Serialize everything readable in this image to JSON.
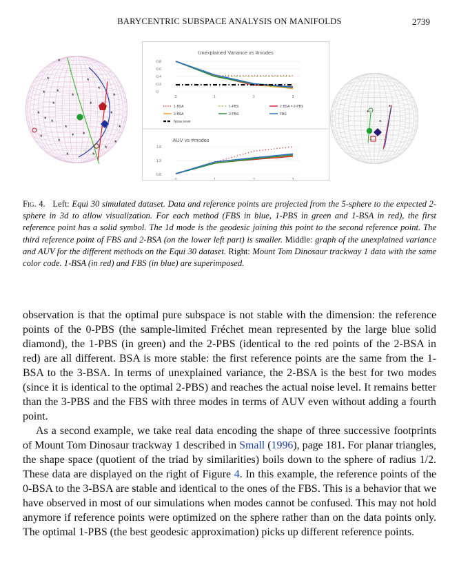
{
  "header": {
    "running_title": "BARYCENTRIC SUBSPACE ANALYSIS ON MANIFOLDS",
    "page_number": "2739"
  },
  "figure": {
    "left_panel": "Equi 30 simulated dataset projected on sphere",
    "right_panel": "Mount Tom Dinosaur trackway 1 data on sphere"
  },
  "chart_data": [
    {
      "type": "line",
      "title": "Unexplained Variance vs #modes",
      "x": [
        0,
        1,
        2,
        3
      ],
      "ylim": [
        0,
        0.8
      ],
      "yticks": [
        "0.8",
        "0.6",
        "0.4",
        "0.2",
        "0"
      ],
      "xticks": [
        "0",
        "1",
        "2",
        "3"
      ],
      "legend": [
        "1-BSA",
        "1-PBS",
        "2-BSA = 2-PBS",
        "3-BSA",
        "3-PBS",
        "FBS",
        "Noise level"
      ],
      "legend_placement": "bottom",
      "series": [
        {
          "name": "1-BSA",
          "color": "#e0282e",
          "style": "dotted",
          "values": [
            0.82,
            0.42,
            0.42,
            0.42
          ]
        },
        {
          "name": "1-PBS",
          "color": "#9ccf6a",
          "style": "dashed",
          "values": [
            0.82,
            0.4,
            0.4,
            0.4
          ]
        },
        {
          "name": "2-BSA = 2-PBS",
          "color": "#e0282e",
          "style": "solid",
          "values": [
            0.82,
            0.42,
            0.17,
            0.13
          ]
        },
        {
          "name": "3-BSA",
          "color": "#f0a030",
          "style": "solid",
          "values": [
            0.82,
            0.42,
            0.19,
            0.08
          ]
        },
        {
          "name": "3-PBS",
          "color": "#2e8b3a",
          "style": "solid",
          "values": [
            0.82,
            0.4,
            0.2,
            0.11
          ]
        },
        {
          "name": "FBS",
          "color": "#2a6fc4",
          "style": "solid",
          "values": [
            0.82,
            0.44,
            0.21,
            0.12
          ]
        },
        {
          "name": "Noise level",
          "color": "#000000",
          "style": "dashdot",
          "values": [
            0.18,
            0.18,
            0.18,
            0.18
          ]
        }
      ]
    },
    {
      "type": "line",
      "title": "AUV vs #modes",
      "x": [
        0,
        1,
        2,
        3
      ],
      "ylim": [
        0.8,
        1.8
      ],
      "yticks": [
        "1.8",
        "1.3",
        "0.8"
      ],
      "xticks": [
        "0",
        "1",
        "2",
        "3"
      ],
      "series": [
        {
          "name": "1-BSA",
          "color": "#e0282e",
          "style": "dotted",
          "values": [
            0.82,
            1.24,
            1.64,
            2.0
          ]
        },
        {
          "name": "2-BSA = 2-PBS",
          "color": "#e0282e",
          "style": "solid",
          "values": [
            0.82,
            1.22,
            1.34,
            1.45
          ]
        },
        {
          "name": "3-BSA",
          "color": "#f0a030",
          "style": "solid",
          "values": [
            0.82,
            1.22,
            1.36,
            1.49
          ]
        },
        {
          "name": "3-PBS",
          "color": "#2e8b3a",
          "style": "solid",
          "values": [
            0.82,
            1.2,
            1.36,
            1.5
          ]
        },
        {
          "name": "FBS",
          "color": "#2a6fc4",
          "style": "solid",
          "values": [
            0.82,
            1.25,
            1.4,
            1.54
          ]
        }
      ]
    }
  ],
  "caption": {
    "label": "Fig. 4.",
    "left_label": "Left:",
    "left_text": "Equi 30 simulated dataset. Data and reference points are projected from the 5-sphere to the expected 2-sphere in 3d to allow visualization. For each method (FBS in blue, 1-PBS in green and 1-BSA in red), the first reference point has a solid symbol. The 1d mode is the geodesic joining this point to the second reference point. The third reference point of FBS and 2-BSA (on the lower left part) is smaller.",
    "middle_label": "Middle:",
    "middle_text": "graph of the unexplained variance and AUV for the different methods on the Equi 30 dataset.",
    "right_label": "Right:",
    "right_text": "Mount Tom Dinosaur trackway 1 data with the same color code. 1-BSA (in red) and FBS (in blue) are superimposed."
  },
  "body": {
    "paragraph1": "observation is that the optimal pure subspace is not stable with the dimension: the reference points of the 0-PBS (the sample-limited Fréchet mean represented by the large blue solid diamond), the 1-PBS (in green) and the 2-PBS (identical to the red points of the 2-BSA in red) are all different. BSA is more stable: the first reference points are the same from the 1-BSA to the 3-BSA. In terms of unexplained variance, the 2-BSA is the best for two modes (since it is identical to the optimal 2-PBS) and reaches the actual noise level. It remains better than the 3-PBS and the FBS with three modes in terms of AUV even without adding a fourth point.",
    "p2_a": "As a second example, we take real data encoding the shape of three successive footprints of Mount Tom Dinosaur trackway 1 described in ",
    "p2_cite_author": "Small",
    "p2_cite_year": "1996",
    "p2_b": "), page 181. For planar triangles, the shape space (quotient of the triad by similarities) boils down to the sphere of radius 1/2. These data are displayed on the right of Figure ",
    "p2_fig_ref": "4",
    "p2_c": ". In this example, the reference points of the 0-BSA to the 3-BSA are stable and identical to the ones of the FBS. This is a behavior that we have observed in most of our simulations when modes cannot be confused. This may not hold anymore if reference points were optimized on the sphere rather than on the data points only. The optimal 1-PBS (the best geodesic approximation) picks up different reference points."
  }
}
